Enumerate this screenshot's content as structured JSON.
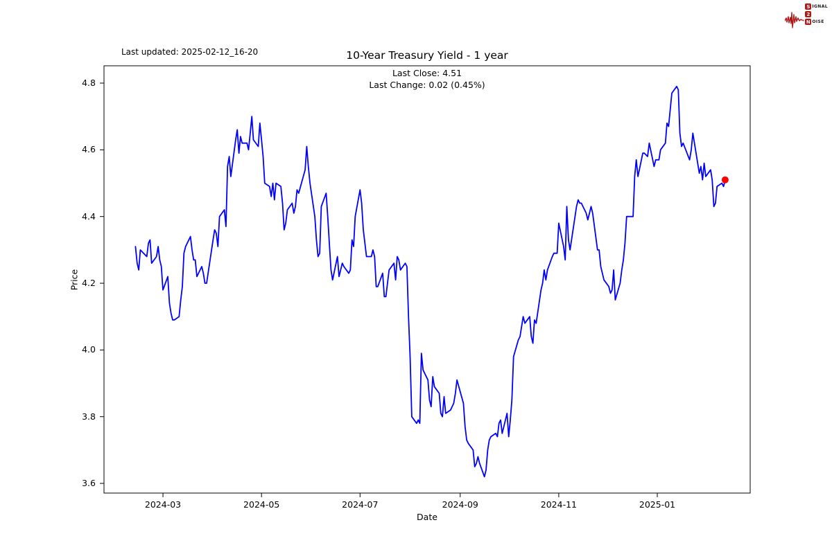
{
  "header": {
    "last_updated": "Last updated: 2025-02-12_16-20"
  },
  "logo": {
    "color": "#b01818",
    "line1_box": "S",
    "line1_rest": "IGNAL",
    "line2_box": "2",
    "line2_rest": "",
    "line3_box": "N",
    "line3_rest": "OISE"
  },
  "chart_data": {
    "type": "line",
    "title": "10-Year Treasury Yield - 1 year",
    "subtitle_line1": "Last Close: 4.51",
    "subtitle_line2": "Last Change: 0.02 (0.45%)",
    "last_close": 4.51,
    "last_change": "0.02 (0.45%)",
    "grid": false,
    "legend": "none",
    "x_axis": {
      "label": "Date",
      "start_date": "2024-02-13",
      "end_date": "2025-02-12",
      "ticks": [
        {
          "label": "2024-03",
          "date": "2024-03-01"
        },
        {
          "label": "2024-05",
          "date": "2024-05-01"
        },
        {
          "label": "2024-07",
          "date": "2024-07-01"
        },
        {
          "label": "2024-09",
          "date": "2024-09-01"
        },
        {
          "label": "2024-11",
          "date": "2024-11-01"
        },
        {
          "label": "2025-01",
          "date": "2025-01-01"
        }
      ]
    },
    "y_axis": {
      "label": "Price",
      "ylim": [
        3.57,
        4.85
      ],
      "ticks": [
        {
          "label": "3.6",
          "value": 3.6
        },
        {
          "label": "3.8",
          "value": 3.8
        },
        {
          "label": "4.0",
          "value": 4.0
        },
        {
          "label": "4.2",
          "value": 4.2
        },
        {
          "label": "4.4",
          "value": 4.4
        },
        {
          "label": "4.6",
          "value": 4.6
        },
        {
          "label": "4.8",
          "value": 4.8
        }
      ]
    },
    "series": {
      "name": "10-Year Treasury Yield",
      "color": "#0000ff",
      "points": [
        [
          "2024-02-13",
          4.31
        ],
        [
          "2024-02-14",
          4.26
        ],
        [
          "2024-02-15",
          4.24
        ],
        [
          "2024-02-16",
          4.3
        ],
        [
          "2024-02-20",
          4.28
        ],
        [
          "2024-02-21",
          4.32
        ],
        [
          "2024-02-22",
          4.33
        ],
        [
          "2024-02-23",
          4.26
        ],
        [
          "2024-02-26",
          4.28
        ],
        [
          "2024-02-27",
          4.31
        ],
        [
          "2024-02-28",
          4.27
        ],
        [
          "2024-02-29",
          4.25
        ],
        [
          "2024-03-01",
          4.18
        ],
        [
          "2024-03-04",
          4.22
        ],
        [
          "2024-03-05",
          4.14
        ],
        [
          "2024-03-06",
          4.11
        ],
        [
          "2024-03-07",
          4.09
        ],
        [
          "2024-03-08",
          4.09
        ],
        [
          "2024-03-11",
          4.1
        ],
        [
          "2024-03-12",
          4.15
        ],
        [
          "2024-03-13",
          4.19
        ],
        [
          "2024-03-14",
          4.29
        ],
        [
          "2024-03-15",
          4.31
        ],
        [
          "2024-03-18",
          4.34
        ],
        [
          "2024-03-19",
          4.3
        ],
        [
          "2024-03-20",
          4.27
        ],
        [
          "2024-03-21",
          4.27
        ],
        [
          "2024-03-22",
          4.22
        ],
        [
          "2024-03-25",
          4.25
        ],
        [
          "2024-03-26",
          4.23
        ],
        [
          "2024-03-27",
          4.2
        ],
        [
          "2024-03-28",
          4.2
        ],
        [
          "2024-04-01",
          4.33
        ],
        [
          "2024-04-02",
          4.36
        ],
        [
          "2024-04-03",
          4.35
        ],
        [
          "2024-04-04",
          4.31
        ],
        [
          "2024-04-05",
          4.4
        ],
        [
          "2024-04-08",
          4.42
        ],
        [
          "2024-04-09",
          4.37
        ],
        [
          "2024-04-10",
          4.55
        ],
        [
          "2024-04-11",
          4.58
        ],
        [
          "2024-04-12",
          4.52
        ],
        [
          "2024-04-15",
          4.63
        ],
        [
          "2024-04-16",
          4.66
        ],
        [
          "2024-04-17",
          4.59
        ],
        [
          "2024-04-18",
          4.64
        ],
        [
          "2024-04-19",
          4.62
        ],
        [
          "2024-04-22",
          4.62
        ],
        [
          "2024-04-23",
          4.6
        ],
        [
          "2024-04-24",
          4.65
        ],
        [
          "2024-04-25",
          4.7
        ],
        [
          "2024-04-26",
          4.63
        ],
        [
          "2024-04-29",
          4.61
        ],
        [
          "2024-04-30",
          4.68
        ],
        [
          "2024-05-01",
          4.63
        ],
        [
          "2024-05-02",
          4.58
        ],
        [
          "2024-05-03",
          4.5
        ],
        [
          "2024-05-06",
          4.49
        ],
        [
          "2024-05-07",
          4.46
        ],
        [
          "2024-05-08",
          4.5
        ],
        [
          "2024-05-09",
          4.45
        ],
        [
          "2024-05-10",
          4.5
        ],
        [
          "2024-05-13",
          4.49
        ],
        [
          "2024-05-14",
          4.44
        ],
        [
          "2024-05-15",
          4.36
        ],
        [
          "2024-05-16",
          4.38
        ],
        [
          "2024-05-17",
          4.42
        ],
        [
          "2024-05-20",
          4.44
        ],
        [
          "2024-05-21",
          4.41
        ],
        [
          "2024-05-22",
          4.43
        ],
        [
          "2024-05-23",
          4.48
        ],
        [
          "2024-05-24",
          4.47
        ],
        [
          "2024-05-28",
          4.54
        ],
        [
          "2024-05-29",
          4.61
        ],
        [
          "2024-05-30",
          4.55
        ],
        [
          "2024-05-31",
          4.5
        ],
        [
          "2024-06-03",
          4.4
        ],
        [
          "2024-06-04",
          4.33
        ],
        [
          "2024-06-05",
          4.28
        ],
        [
          "2024-06-06",
          4.29
        ],
        [
          "2024-06-07",
          4.43
        ],
        [
          "2024-06-10",
          4.47
        ],
        [
          "2024-06-11",
          4.4
        ],
        [
          "2024-06-12",
          4.32
        ],
        [
          "2024-06-13",
          4.24
        ],
        [
          "2024-06-14",
          4.21
        ],
        [
          "2024-06-17",
          4.28
        ],
        [
          "2024-06-18",
          4.22
        ],
        [
          "2024-06-20",
          4.26
        ],
        [
          "2024-06-21",
          4.25
        ],
        [
          "2024-06-24",
          4.23
        ],
        [
          "2024-06-25",
          4.24
        ],
        [
          "2024-06-26",
          4.33
        ],
        [
          "2024-06-27",
          4.31
        ],
        [
          "2024-06-28",
          4.4
        ],
        [
          "2024-07-01",
          4.48
        ],
        [
          "2024-07-02",
          4.44
        ],
        [
          "2024-07-03",
          4.36
        ],
        [
          "2024-07-05",
          4.28
        ],
        [
          "2024-07-08",
          4.28
        ],
        [
          "2024-07-09",
          4.3
        ],
        [
          "2024-07-10",
          4.28
        ],
        [
          "2024-07-11",
          4.19
        ],
        [
          "2024-07-12",
          4.19
        ],
        [
          "2024-07-15",
          4.23
        ],
        [
          "2024-07-16",
          4.16
        ],
        [
          "2024-07-17",
          4.16
        ],
        [
          "2024-07-18",
          4.2
        ],
        [
          "2024-07-19",
          4.24
        ],
        [
          "2024-07-22",
          4.26
        ],
        [
          "2024-07-23",
          4.21
        ],
        [
          "2024-07-24",
          4.28
        ],
        [
          "2024-07-25",
          4.27
        ],
        [
          "2024-07-26",
          4.24
        ],
        [
          "2024-07-29",
          4.26
        ],
        [
          "2024-07-30",
          4.25
        ],
        [
          "2024-07-31",
          4.1
        ],
        [
          "2024-08-01",
          3.98
        ],
        [
          "2024-08-02",
          3.8
        ],
        [
          "2024-08-05",
          3.78
        ],
        [
          "2024-08-06",
          3.79
        ],
        [
          "2024-08-07",
          3.78
        ],
        [
          "2024-08-08",
          3.99
        ],
        [
          "2024-08-09",
          3.94
        ],
        [
          "2024-08-12",
          3.91
        ],
        [
          "2024-08-13",
          3.85
        ],
        [
          "2024-08-14",
          3.83
        ],
        [
          "2024-08-15",
          3.92
        ],
        [
          "2024-08-16",
          3.89
        ],
        [
          "2024-08-19",
          3.87
        ],
        [
          "2024-08-20",
          3.81
        ],
        [
          "2024-08-21",
          3.8
        ],
        [
          "2024-08-22",
          3.86
        ],
        [
          "2024-08-23",
          3.81
        ],
        [
          "2024-08-26",
          3.82
        ],
        [
          "2024-08-27",
          3.83
        ],
        [
          "2024-08-28",
          3.84
        ],
        [
          "2024-08-29",
          3.87
        ],
        [
          "2024-08-30",
          3.91
        ],
        [
          "2024-09-03",
          3.84
        ],
        [
          "2024-09-04",
          3.77
        ],
        [
          "2024-09-05",
          3.73
        ],
        [
          "2024-09-06",
          3.72
        ],
        [
          "2024-09-09",
          3.7
        ],
        [
          "2024-09-10",
          3.65
        ],
        [
          "2024-09-11",
          3.66
        ],
        [
          "2024-09-12",
          3.68
        ],
        [
          "2024-09-13",
          3.66
        ],
        [
          "2024-09-16",
          3.62
        ],
        [
          "2024-09-17",
          3.64
        ],
        [
          "2024-09-18",
          3.7
        ],
        [
          "2024-09-19",
          3.73
        ],
        [
          "2024-09-20",
          3.74
        ],
        [
          "2024-09-23",
          3.75
        ],
        [
          "2024-09-24",
          3.74
        ],
        [
          "2024-09-25",
          3.78
        ],
        [
          "2024-09-26",
          3.79
        ],
        [
          "2024-09-27",
          3.75
        ],
        [
          "2024-09-30",
          3.81
        ],
        [
          "2024-10-01",
          3.74
        ],
        [
          "2024-10-02",
          3.79
        ],
        [
          "2024-10-03",
          3.85
        ],
        [
          "2024-10-04",
          3.98
        ],
        [
          "2024-10-07",
          4.03
        ],
        [
          "2024-10-08",
          4.04
        ],
        [
          "2024-10-09",
          4.07
        ],
        [
          "2024-10-10",
          4.1
        ],
        [
          "2024-10-11",
          4.08
        ],
        [
          "2024-10-14",
          4.1
        ],
        [
          "2024-10-15",
          4.04
        ],
        [
          "2024-10-16",
          4.02
        ],
        [
          "2024-10-17",
          4.09
        ],
        [
          "2024-10-18",
          4.08
        ],
        [
          "2024-10-21",
          4.18
        ],
        [
          "2024-10-22",
          4.2
        ],
        [
          "2024-10-23",
          4.24
        ],
        [
          "2024-10-24",
          4.21
        ],
        [
          "2024-10-25",
          4.24
        ],
        [
          "2024-10-28",
          4.28
        ],
        [
          "2024-10-29",
          4.29
        ],
        [
          "2024-10-30",
          4.29
        ],
        [
          "2024-10-31",
          4.29
        ],
        [
          "2024-11-01",
          4.38
        ],
        [
          "2024-11-04",
          4.31
        ],
        [
          "2024-11-05",
          4.27
        ],
        [
          "2024-11-06",
          4.43
        ],
        [
          "2024-11-07",
          4.33
        ],
        [
          "2024-11-08",
          4.3
        ],
        [
          "2024-11-12",
          4.43
        ],
        [
          "2024-11-13",
          4.45
        ],
        [
          "2024-11-14",
          4.44
        ],
        [
          "2024-11-15",
          4.44
        ],
        [
          "2024-11-18",
          4.41
        ],
        [
          "2024-11-19",
          4.39
        ],
        [
          "2024-11-20",
          4.41
        ],
        [
          "2024-11-21",
          4.43
        ],
        [
          "2024-11-22",
          4.41
        ],
        [
          "2024-11-25",
          4.3
        ],
        [
          "2024-11-26",
          4.3
        ],
        [
          "2024-11-27",
          4.25
        ],
        [
          "2024-11-29",
          4.21
        ],
        [
          "2024-12-02",
          4.19
        ],
        [
          "2024-12-03",
          4.17
        ],
        [
          "2024-12-04",
          4.18
        ],
        [
          "2024-12-05",
          4.24
        ],
        [
          "2024-12-06",
          4.15
        ],
        [
          "2024-12-09",
          4.2
        ],
        [
          "2024-12-10",
          4.24
        ],
        [
          "2024-12-11",
          4.27
        ],
        [
          "2024-12-12",
          4.32
        ],
        [
          "2024-12-13",
          4.4
        ],
        [
          "2024-12-16",
          4.4
        ],
        [
          "2024-12-17",
          4.4
        ],
        [
          "2024-12-18",
          4.52
        ],
        [
          "2024-12-19",
          4.57
        ],
        [
          "2024-12-20",
          4.52
        ],
        [
          "2024-12-23",
          4.59
        ],
        [
          "2024-12-24",
          4.59
        ],
        [
          "2024-12-26",
          4.58
        ],
        [
          "2024-12-27",
          4.62
        ],
        [
          "2024-12-30",
          4.55
        ],
        [
          "2024-12-31",
          4.57
        ],
        [
          "2025-01-02",
          4.57
        ],
        [
          "2025-01-03",
          4.6
        ],
        [
          "2025-01-06",
          4.62
        ],
        [
          "2025-01-07",
          4.68
        ],
        [
          "2025-01-08",
          4.67
        ],
        [
          "2025-01-10",
          4.77
        ],
        [
          "2025-01-13",
          4.79
        ],
        [
          "2025-01-14",
          4.78
        ],
        [
          "2025-01-15",
          4.65
        ],
        [
          "2025-01-16",
          4.61
        ],
        [
          "2025-01-17",
          4.62
        ],
        [
          "2025-01-21",
          4.57
        ],
        [
          "2025-01-22",
          4.6
        ],
        [
          "2025-01-23",
          4.65
        ],
        [
          "2025-01-24",
          4.62
        ],
        [
          "2025-01-27",
          4.53
        ],
        [
          "2025-01-28",
          4.55
        ],
        [
          "2025-01-29",
          4.51
        ],
        [
          "2025-01-30",
          4.56
        ],
        [
          "2025-01-31",
          4.52
        ],
        [
          "2025-02-03",
          4.54
        ],
        [
          "2025-02-04",
          4.51
        ],
        [
          "2025-02-05",
          4.43
        ],
        [
          "2025-02-06",
          4.44
        ],
        [
          "2025-02-07",
          4.49
        ],
        [
          "2025-02-10",
          4.5
        ],
        [
          "2025-02-11",
          4.49
        ],
        [
          "2025-02-12",
          4.51
        ]
      ]
    },
    "last_point_marker": {
      "date": "2025-02-12",
      "value": 4.51,
      "color": "#ff0000"
    }
  }
}
